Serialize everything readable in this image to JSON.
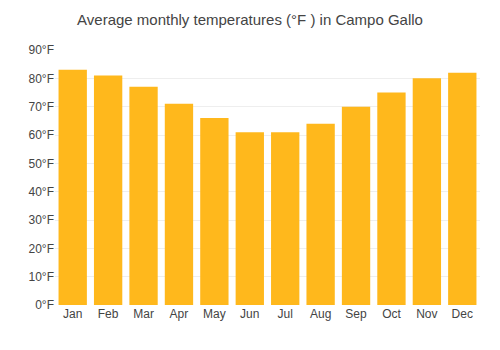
{
  "chart_data": {
    "type": "bar",
    "title": "Average monthly temperatures (°F ) in Campo Gallo",
    "categories": [
      "Jan",
      "Feb",
      "Mar",
      "Apr",
      "May",
      "Jun",
      "Jul",
      "Aug",
      "Sep",
      "Oct",
      "Nov",
      "Dec"
    ],
    "values": [
      83,
      81,
      77,
      71,
      66,
      61,
      61,
      64,
      70,
      75,
      80,
      82
    ],
    "color": "#FFB81C",
    "ylim": [
      0,
      90
    ],
    "yticks": [
      {
        "value": 0,
        "label": "0°F"
      },
      {
        "value": 10,
        "label": "10°F"
      },
      {
        "value": 20,
        "label": "20°F"
      },
      {
        "value": 30,
        "label": "30°F"
      },
      {
        "value": 40,
        "label": "40°F"
      },
      {
        "value": 50,
        "label": "50°F"
      },
      {
        "value": 60,
        "label": "60°F"
      },
      {
        "value": 70,
        "label": "70°F"
      },
      {
        "value": 80,
        "label": "80°F"
      },
      {
        "value": 90,
        "label": "90°F"
      }
    ],
    "grid": true
  }
}
